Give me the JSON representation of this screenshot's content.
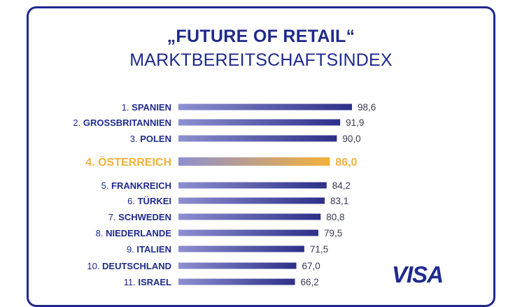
{
  "title": "„FUTURE OF RETAIL“",
  "subtitle": "MARKTBEREITSCHAFTSINDEX",
  "logo": "VISA",
  "colors": {
    "bar": "#33388f",
    "bar_light": "#8e8fd0",
    "highlight": "#f3b13a",
    "brand": "#1f2a8c"
  },
  "chart_data": {
    "type": "bar",
    "orientation": "horizontal",
    "title": "„FUTURE OF RETAIL“",
    "subtitle": "MARKTBEREITSCHAFTSINDEX",
    "items": [
      {
        "rank": "1.",
        "country": "SPANIEN",
        "value": 98.6,
        "label": "98,6",
        "highlight": false
      },
      {
        "rank": "2.",
        "country": "GROSSBRITANNIEN",
        "value": 91.9,
        "label": "91,9",
        "highlight": false
      },
      {
        "rank": "3.",
        "country": "POLEN",
        "value": 90.0,
        "label": "90,0",
        "highlight": false
      },
      {
        "rank": "4.",
        "country": "ÖSTERREICH",
        "value": 86.0,
        "label": "86,0",
        "highlight": true
      },
      {
        "rank": "5.",
        "country": "FRANKREICH",
        "value": 84.2,
        "label": "84,2",
        "highlight": false
      },
      {
        "rank": "6.",
        "country": "TÜRKEI",
        "value": 83.1,
        "label": "83,1",
        "highlight": false
      },
      {
        "rank": "7.",
        "country": "SCHWEDEN",
        "value": 80.8,
        "label": "80,8",
        "highlight": false
      },
      {
        "rank": "8.",
        "country": "NIEDERLANDE",
        "value": 79.5,
        "label": "79,5",
        "highlight": false
      },
      {
        "rank": "9.",
        "country": "ITALIEN",
        "value": 71.5,
        "label": "71,5",
        "highlight": false
      },
      {
        "rank": "10.",
        "country": "DEUTSCHLAND",
        "value": 67.0,
        "label": "67,0",
        "highlight": false
      },
      {
        "rank": "11.",
        "country": "ISRAEL",
        "value": 66.2,
        "label": "66,2",
        "highlight": false
      }
    ]
  }
}
